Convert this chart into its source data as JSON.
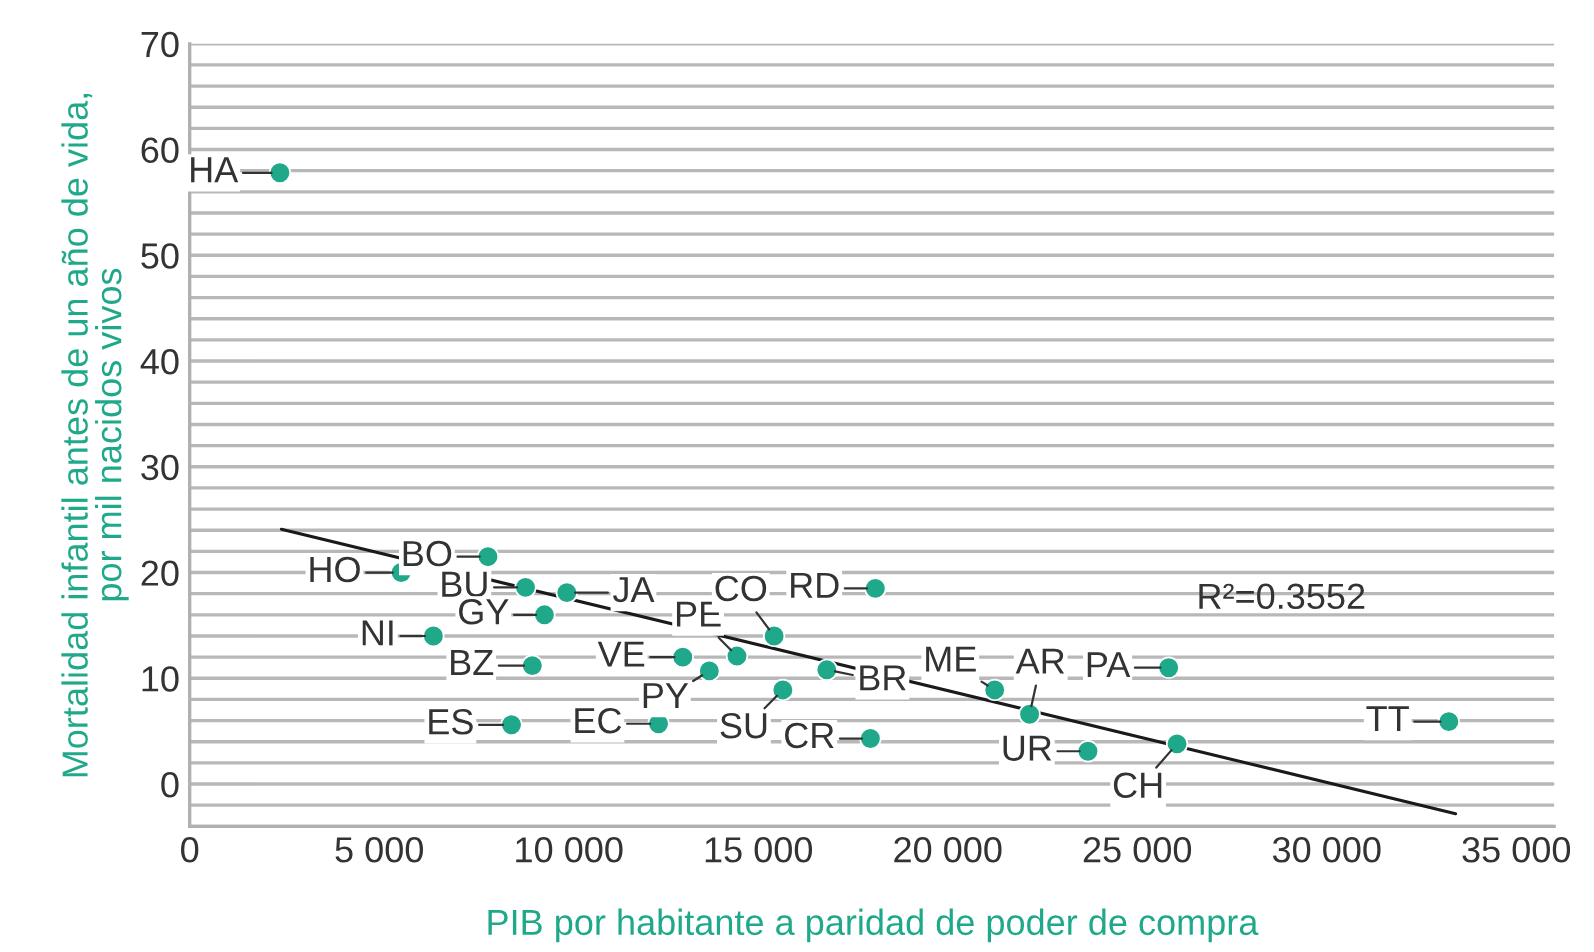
{
  "chart_data": {
    "type": "scatter",
    "xlabel": "PIB por habitante a paridad de poder de compra",
    "ylabel": "Mortalidad infantil antes de un año de vida,\npor mil nacidos vivos",
    "xlim": [
      0,
      36000
    ],
    "ylim": [
      -4,
      70
    ],
    "xticks": [
      0,
      {
        "value": 5000,
        "label": "5 000"
      },
      {
        "value": 10000,
        "label": "10 000"
      },
      {
        "value": 15000,
        "label": "15 000"
      },
      {
        "value": 20000,
        "label": "20 000"
      },
      {
        "value": 25000,
        "label": "25 000"
      },
      {
        "value": 30000,
        "label": "30 000"
      },
      {
        "value": 35000,
        "label": "35 000"
      }
    ],
    "yticks": [
      {
        "value": -4,
        "label": null
      },
      {
        "value": -2,
        "label": null
      },
      0,
      {
        "value": 2,
        "label": null
      },
      {
        "value": 4,
        "label": null
      },
      {
        "value": 6,
        "label": null
      },
      {
        "value": 8,
        "label": null
      },
      10,
      {
        "value": 12,
        "label": null
      },
      {
        "value": 14,
        "label": null
      },
      {
        "value": 16,
        "label": null
      },
      {
        "value": 18,
        "label": null
      },
      20,
      {
        "value": 22,
        "label": null
      },
      {
        "value": 24,
        "label": null
      },
      {
        "value": 26,
        "label": null
      },
      {
        "value": 28,
        "label": null
      },
      30,
      {
        "value": 32,
        "label": null
      },
      {
        "value": 34,
        "label": null
      },
      {
        "value": 36,
        "label": null
      },
      {
        "value": 38,
        "label": null
      },
      40,
      {
        "value": 42,
        "label": null
      },
      {
        "value": 44,
        "label": null
      },
      {
        "value": 46,
        "label": null
      },
      {
        "value": 48,
        "label": null
      },
      50,
      {
        "value": 52,
        "label": null
      },
      {
        "value": 54,
        "label": null
      },
      {
        "value": 56,
        "label": null
      },
      {
        "value": 58,
        "label": null
      },
      60,
      {
        "value": 62,
        "label": null
      },
      {
        "value": 64,
        "label": null
      },
      {
        "value": 66,
        "label": null
      },
      {
        "value": 68,
        "label": null
      },
      70
    ],
    "grid": "y",
    "legend": false,
    "series": [
      {
        "marker": "circle",
        "color": "#1fa98a",
        "x": [
          2380,
          5580,
          7870,
          8860,
          9950,
          9360,
          6430,
          9040,
          8490,
          12370,
          13010,
          14440,
          13710,
          15420,
          15650,
          16810,
          18090,
          17960,
          21240,
          22160,
          23700,
          26050,
          25830,
          33220
        ],
        "values": [
          57.8,
          20.0,
          21.5,
          18.6,
          18.1,
          16.0,
          14.0,
          11.2,
          5.6,
          5.7,
          12.0,
          12.1,
          10.7,
          14.0,
          8.9,
          10.8,
          18.5,
          4.3,
          8.9,
          6.6,
          3.1,
          3.8,
          11.0,
          5.9
        ]
      },
      {
        "type": "line",
        "marker": "none",
        "color": "#1a1a1a",
        "x": [
          2420,
          33400
        ],
        "values": [
          24.1,
          -2.8
        ]
      }
    ],
    "annotations": [
      {
        "text": "HA",
        "x": 2380,
        "y": 57.8
      },
      {
        "text": "HO",
        "x": 5580,
        "y": 20.0
      },
      {
        "text": "BO",
        "x": 7870,
        "y": 21.5
      },
      {
        "text": "BU",
        "x": 8860,
        "y": 18.6
      },
      {
        "text": "JA",
        "x": 9950,
        "y": 18.1
      },
      {
        "text": "GY",
        "x": 9360,
        "y": 16.0
      },
      {
        "text": "NI",
        "x": 6430,
        "y": 14.0
      },
      {
        "text": "BZ",
        "x": 9040,
        "y": 11.2
      },
      {
        "text": "ES",
        "x": 8490,
        "y": 5.6
      },
      {
        "text": "EC",
        "x": 12370,
        "y": 5.7
      },
      {
        "text": "VE",
        "x": 13010,
        "y": 12.0
      },
      {
        "text": "PE",
        "x": 14440,
        "y": 12.1
      },
      {
        "text": "PY",
        "x": 13710,
        "y": 10.7
      },
      {
        "text": "CO",
        "x": 15420,
        "y": 14.0
      },
      {
        "text": "SU",
        "x": 15650,
        "y": 8.9
      },
      {
        "text": "BR",
        "x": 16810,
        "y": 10.8
      },
      {
        "text": "RD",
        "x": 18090,
        "y": 18.5
      },
      {
        "text": "CR",
        "x": 17960,
        "y": 4.3
      },
      {
        "text": "ME",
        "x": 21240,
        "y": 8.9
      },
      {
        "text": "AR",
        "x": 22160,
        "y": 6.6
      },
      {
        "text": "UR",
        "x": 23700,
        "y": 3.1
      },
      {
        "text": "CH",
        "x": 26050,
        "y": 3.8
      },
      {
        "text": "PA",
        "x": 25830,
        "y": 11.0
      },
      {
        "text": "TT",
        "x": 33220,
        "y": 5.9
      },
      "R²=0.3552"
    ]
  }
}
